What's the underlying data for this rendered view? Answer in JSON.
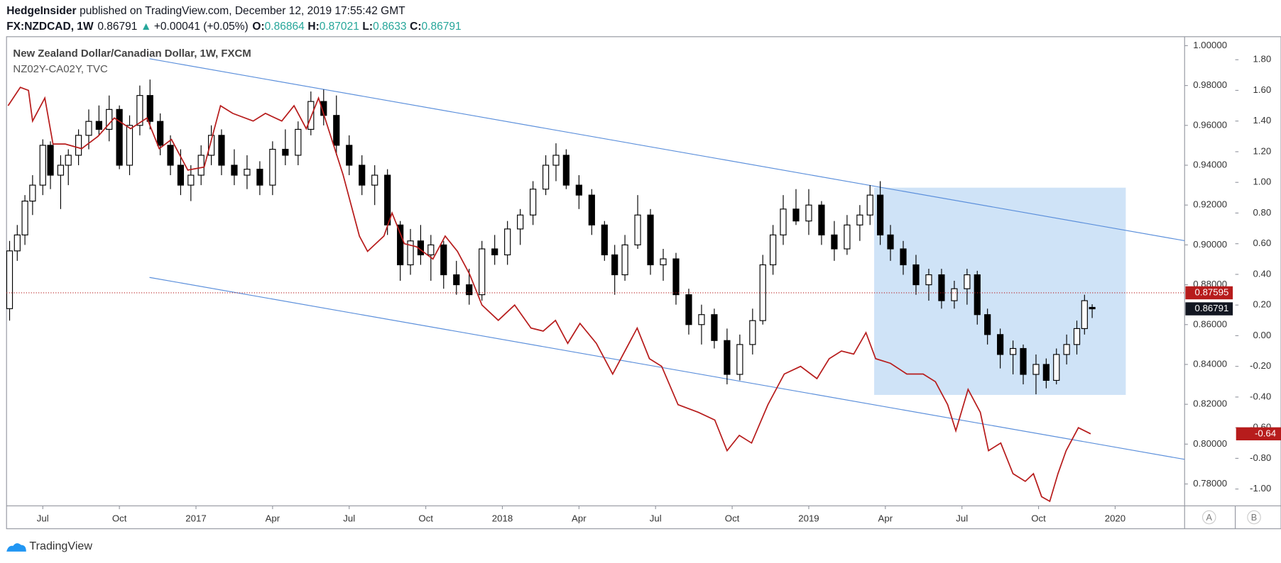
{
  "header": {
    "author": "HedgeInsider",
    "published": "published on TradingView.com, December 12, 2019 17:55:42 GMT",
    "symbol": "FX:NZDCAD, 1W",
    "arrow": "▲",
    "change": "+0.00041 (+0.05%)",
    "o": "O:",
    "h": "H:",
    "l": "L:",
    "c": "C:"
  },
  "footer": {
    "brand": "TradingView",
    "button_a": "A",
    "button_b": "B"
  },
  "chart_data": {
    "type": "candlestick",
    "xlim": [
      4.58,
      50.72
    ],
    "xticks": [
      {
        "value": 6,
        "label": "Jul"
      },
      {
        "value": 9,
        "label": "Oct"
      },
      {
        "value": 12,
        "label": "2017"
      },
      {
        "value": 15,
        "label": "Apr"
      },
      {
        "value": 18,
        "label": "Jul"
      },
      {
        "value": 21,
        "label": "Oct"
      },
      {
        "value": 24,
        "label": "2018"
      },
      {
        "value": 27,
        "label": "Apr"
      },
      {
        "value": 30,
        "label": "Jul"
      },
      {
        "value": 33,
        "label": "Oct"
      },
      {
        "value": 36,
        "label": "2019"
      },
      {
        "value": 39,
        "label": "Apr"
      },
      {
        "value": 42,
        "label": "Jul"
      },
      {
        "value": 45,
        "label": "Oct"
      },
      {
        "value": 48,
        "label": "2020"
      }
    ],
    "ylim": [
      0.769,
      1.0045
    ],
    "yticks": [
      {
        "value": 1.0,
        "label": "1.00000"
      },
      {
        "value": 0.98,
        "label": "0.98000"
      },
      {
        "value": 0.96,
        "label": "0.96000"
      },
      {
        "value": 0.94,
        "label": "0.94000"
      },
      {
        "value": 0.92,
        "label": "0.92000"
      },
      {
        "value": 0.9,
        "label": "0.90000"
      },
      {
        "value": 0.88,
        "label": "0.88000"
      },
      {
        "value": 0.86,
        "label": "0.86000"
      },
      {
        "value": 0.84,
        "label": "0.84000"
      },
      {
        "value": 0.82,
        "label": "0.82000"
      },
      {
        "value": 0.8,
        "label": "0.80000"
      },
      {
        "value": 0.78,
        "label": "0.78000"
      }
    ],
    "y2lim": [
      -1.11,
      1.95
    ],
    "y2ticks": [
      {
        "value": 1.8,
        "label": "1.80"
      },
      {
        "value": 1.6,
        "label": "1.60"
      },
      {
        "value": 1.4,
        "label": "1.40"
      },
      {
        "value": 1.2,
        "label": "1.20"
      },
      {
        "value": 1.0,
        "label": "1.00"
      },
      {
        "value": 0.8,
        "label": "0.80"
      },
      {
        "value": 0.6,
        "label": "0.60"
      },
      {
        "value": 0.4,
        "label": "0.40"
      },
      {
        "value": 0.2,
        "label": "0.20"
      },
      {
        "value": 0.0,
        "label": "0.00"
      },
      {
        "value": -0.2,
        "label": "-0.20"
      },
      {
        "value": -0.4,
        "label": "-0.40"
      },
      {
        "value": -0.6,
        "label": "-0.60"
      },
      {
        "value": -0.8,
        "label": "-0.80"
      },
      {
        "value": -1.0,
        "label": "-1.00"
      }
    ],
    "price_line": 0.87595,
    "series": [
      {
        "name": "New Zealand Dollar/Canadian Dollar, 1W, FXCM",
        "color_up": "#ffffff",
        "color_down": "#000000",
        "x": [
          4.7,
          5.0,
          5.3,
          5.6,
          6.0,
          6.3,
          6.7,
          7.0,
          7.4,
          7.8,
          8.2,
          8.6,
          9.0,
          9.4,
          9.8,
          10.2,
          10.6,
          11.0,
          11.4,
          11.8,
          12.2,
          12.6,
          13.0,
          13.5,
          14.0,
          14.5,
          15.0,
          15.5,
          16.0,
          16.5,
          17.0,
          17.5,
          18.0,
          18.5,
          19.0,
          19.5,
          20.0,
          20.4,
          20.8,
          21.2,
          21.7,
          22.2,
          22.7,
          23.2,
          23.7,
          24.2,
          24.7,
          25.2,
          25.7,
          26.1,
          26.5,
          27.0,
          27.5,
          28.0,
          28.4,
          28.8,
          29.3,
          29.8,
          30.3,
          30.8,
          31.3,
          31.8,
          32.3,
          32.8,
          33.3,
          33.8,
          34.2,
          34.6,
          35.0,
          35.5,
          36.0,
          36.5,
          37.0,
          37.5,
          38.0,
          38.4,
          38.8,
          39.2,
          39.7,
          40.2,
          40.7,
          41.2,
          41.7,
          42.2,
          42.6,
          43.0,
          43.5,
          44.0,
          44.4,
          44.9,
          45.3,
          45.7,
          46.1,
          46.5,
          46.8,
          47.1
        ],
        "open": [
          0.868,
          0.897,
          0.905,
          0.922,
          0.93,
          0.95,
          0.935,
          0.94,
          0.945,
          0.955,
          0.962,
          0.958,
          0.968,
          0.94,
          0.96,
          0.975,
          0.962,
          0.95,
          0.94,
          0.93,
          0.935,
          0.945,
          0.955,
          0.94,
          0.935,
          0.938,
          0.93,
          0.948,
          0.945,
          0.958,
          0.972,
          0.965,
          0.95,
          0.94,
          0.93,
          0.935,
          0.91,
          0.89,
          0.902,
          0.895,
          0.9,
          0.885,
          0.88,
          0.875,
          0.898,
          0.895,
          0.908,
          0.915,
          0.928,
          0.94,
          0.945,
          0.93,
          0.925,
          0.91,
          0.895,
          0.885,
          0.9,
          0.915,
          0.89,
          0.893,
          0.875,
          0.86,
          0.865,
          0.852,
          0.835,
          0.85,
          0.862,
          0.89,
          0.905,
          0.918,
          0.912,
          0.92,
          0.905,
          0.898,
          0.91,
          0.915,
          0.925,
          0.905,
          0.898,
          0.89,
          0.88,
          0.885,
          0.872,
          0.878,
          0.885,
          0.865,
          0.855,
          0.845,
          0.848,
          0.835,
          0.84,
          0.832,
          0.845,
          0.85,
          0.858,
          0.86864
        ],
        "high": [
          0.902,
          0.91,
          0.925,
          0.935,
          0.953,
          0.952,
          0.945,
          0.948,
          0.958,
          0.968,
          0.97,
          0.975,
          0.97,
          0.965,
          0.98,
          0.983,
          0.966,
          0.955,
          0.948,
          0.94,
          0.95,
          0.96,
          0.958,
          0.948,
          0.945,
          0.942,
          0.952,
          0.958,
          0.962,
          0.977,
          0.978,
          0.975,
          0.955,
          0.945,
          0.94,
          0.938,
          0.912,
          0.908,
          0.91,
          0.905,
          0.902,
          0.892,
          0.888,
          0.902,
          0.905,
          0.912,
          0.918,
          0.932,
          0.945,
          0.951,
          0.948,
          0.935,
          0.928,
          0.912,
          0.9,
          0.905,
          0.925,
          0.918,
          0.898,
          0.896,
          0.878,
          0.87,
          0.868,
          0.858,
          0.855,
          0.868,
          0.895,
          0.91,
          0.925,
          0.928,
          0.928,
          0.922,
          0.912,
          0.915,
          0.92,
          0.93,
          0.932,
          0.91,
          0.902,
          0.895,
          0.888,
          0.888,
          0.882,
          0.888,
          0.887,
          0.868,
          0.858,
          0.852,
          0.85,
          0.845,
          0.843,
          0.848,
          0.855,
          0.862,
          0.875,
          0.87021
        ],
        "low": [
          0.862,
          0.892,
          0.9,
          0.915,
          0.925,
          0.928,
          0.918,
          0.93,
          0.94,
          0.948,
          0.955,
          0.952,
          0.938,
          0.935,
          0.955,
          0.958,
          0.945,
          0.935,
          0.925,
          0.922,
          0.93,
          0.94,
          0.935,
          0.93,
          0.928,
          0.925,
          0.925,
          0.94,
          0.94,
          0.955,
          0.96,
          0.945,
          0.935,
          0.925,
          0.92,
          0.905,
          0.882,
          0.885,
          0.89,
          0.882,
          0.878,
          0.875,
          0.87,
          0.872,
          0.89,
          0.89,
          0.9,
          0.91,
          0.925,
          0.932,
          0.928,
          0.918,
          0.905,
          0.892,
          0.875,
          0.882,
          0.898,
          0.885,
          0.882,
          0.87,
          0.855,
          0.85,
          0.848,
          0.83,
          0.832,
          0.845,
          0.86,
          0.885,
          0.9,
          0.91,
          0.905,
          0.9,
          0.892,
          0.895,
          0.902,
          0.91,
          0.9,
          0.892,
          0.885,
          0.875,
          0.872,
          0.868,
          0.868,
          0.87,
          0.86,
          0.85,
          0.838,
          0.835,
          0.83,
          0.825,
          0.828,
          0.83,
          0.84,
          0.845,
          0.855,
          0.8633
        ],
        "close": [
          0.897,
          0.905,
          0.922,
          0.93,
          0.95,
          0.935,
          0.94,
          0.945,
          0.955,
          0.962,
          0.958,
          0.968,
          0.94,
          0.96,
          0.975,
          0.962,
          0.95,
          0.94,
          0.93,
          0.935,
          0.945,
          0.955,
          0.94,
          0.935,
          0.938,
          0.93,
          0.948,
          0.945,
          0.958,
          0.972,
          0.965,
          0.95,
          0.94,
          0.93,
          0.935,
          0.91,
          0.89,
          0.902,
          0.895,
          0.9,
          0.885,
          0.88,
          0.875,
          0.898,
          0.895,
          0.908,
          0.915,
          0.928,
          0.94,
          0.945,
          0.93,
          0.925,
          0.91,
          0.895,
          0.885,
          0.9,
          0.915,
          0.89,
          0.893,
          0.875,
          0.86,
          0.865,
          0.852,
          0.835,
          0.85,
          0.862,
          0.89,
          0.905,
          0.918,
          0.912,
          0.92,
          0.905,
          0.898,
          0.91,
          0.915,
          0.925,
          0.905,
          0.898,
          0.89,
          0.88,
          0.885,
          0.872,
          0.878,
          0.885,
          0.865,
          0.855,
          0.845,
          0.848,
          0.835,
          0.84,
          0.832,
          0.845,
          0.85,
          0.858,
          0.872,
          0.86791
        ]
      },
      {
        "name": "NZ02Y-CA02Y, TVC",
        "type": "line",
        "axis": "y2",
        "color": "#b71c1c",
        "x": [
          4.64,
          5.12,
          5.44,
          5.6,
          6.08,
          6.4,
          6.88,
          7.52,
          8.16,
          8.8,
          9.44,
          10.08,
          10.56,
          11.04,
          11.68,
          12.32,
          12.96,
          13.44,
          14.24,
          14.72,
          15.36,
          15.84,
          16.32,
          16.8,
          17.28,
          17.76,
          18.4,
          18.72,
          19.36,
          19.68,
          20.16,
          20.64,
          21.28,
          21.76,
          22.24,
          22.72,
          23.2,
          23.84,
          24.48,
          25.12,
          25.6,
          26.08,
          26.56,
          27.04,
          27.68,
          28.32,
          28.8,
          29.28,
          29.76,
          30.24,
          30.88,
          31.68,
          32.32,
          32.8,
          33.28,
          33.76,
          34.4,
          35.04,
          35.68,
          36.32,
          36.8,
          37.28,
          37.76,
          38.24,
          38.62,
          39.2,
          39.84,
          40.48,
          40.96,
          41.44,
          41.76,
          42.24,
          42.72,
          43.04,
          43.52,
          44,
          44.48,
          44.8,
          45.12,
          45.44,
          45.76,
          46.08,
          46.56,
          47.04
        ],
        "values": [
          1.5,
          1.62,
          1.6,
          1.4,
          1.55,
          1.25,
          1.25,
          1.22,
          1.3,
          1.42,
          1.35,
          1.42,
          1.22,
          1.28,
          1.08,
          1.1,
          1.5,
          1.45,
          1.4,
          1.45,
          1.4,
          1.5,
          1.35,
          1.55,
          1.3,
          1.05,
          0.65,
          0.55,
          0.65,
          0.8,
          0.6,
          0.58,
          0.5,
          0.65,
          0.55,
          0.4,
          0.2,
          0.1,
          0.2,
          0.05,
          0.03,
          0.1,
          -0.05,
          0.08,
          -0.05,
          -0.25,
          -0.1,
          0.05,
          -0.15,
          -0.2,
          -0.45,
          -0.5,
          -0.55,
          -0.75,
          -0.65,
          -0.7,
          -0.45,
          -0.25,
          -0.2,
          -0.28,
          -0.15,
          -0.1,
          -0.12,
          0.02,
          -0.15,
          -0.18,
          -0.25,
          -0.25,
          -0.3,
          -0.45,
          -0.62,
          -0.35,
          -0.5,
          -0.75,
          -0.7,
          -0.9,
          -0.95,
          -0.9,
          -1.05,
          -1.08,
          -0.9,
          -0.75,
          -0.6,
          -0.64
        ]
      }
    ]
  }
}
